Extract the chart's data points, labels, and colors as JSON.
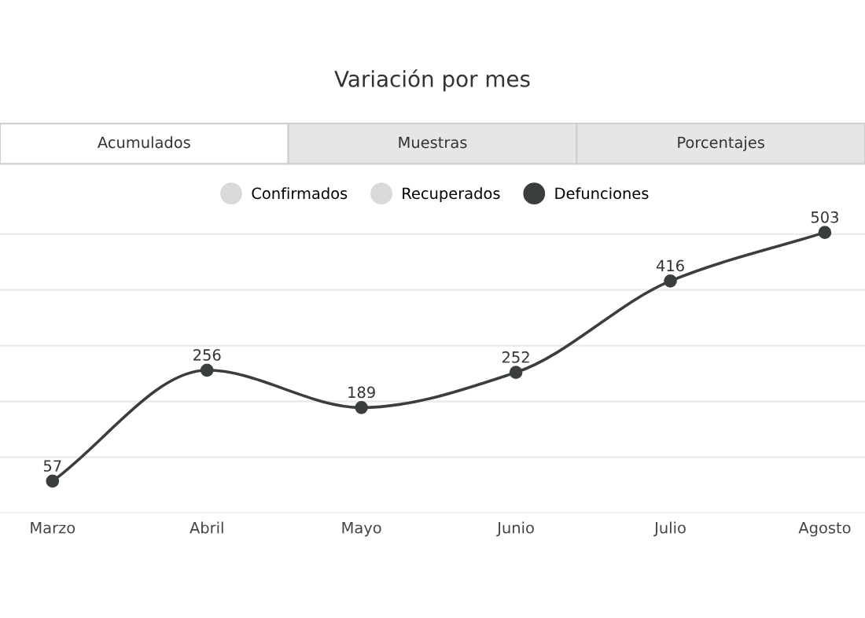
{
  "chart_data": {
    "type": "line",
    "title": "Variación por mes",
    "categories": [
      "Marzo",
      "Abril",
      "Mayo",
      "Junio",
      "Julio",
      "Agosto"
    ],
    "series": [
      {
        "name": "Confirmados",
        "color": "#d9d9d9",
        "values": [
          null,
          null,
          null,
          null,
          null,
          null
        ]
      },
      {
        "name": "Recuperados",
        "color": "#d9d9d9",
        "values": [
          null,
          null,
          null,
          null,
          null,
          null
        ]
      },
      {
        "name": "Defunciones",
        "color": "#3b3f3b",
        "values": [
          57,
          256,
          189,
          252,
          416,
          503
        ]
      }
    ],
    "tick_labels": "x",
    "grid": "y",
    "legend": "top",
    "marker": "circle",
    "line_style": "solid",
    "data_labels": true,
    "annotations": [
      "Acumulados",
      "Muestras",
      "Porcentajes"
    ]
  }
}
